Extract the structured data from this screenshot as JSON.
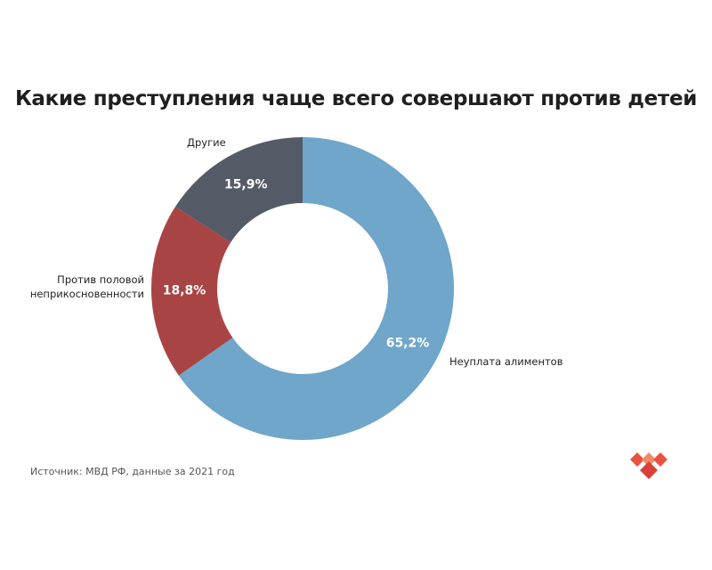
{
  "chart_data": {
    "type": "donut",
    "title": "Какие преступления чаще всего совершают против детей",
    "categories": [
      "Неуплата алиментов",
      "Против половой неприкосновенности",
      "Другие"
    ],
    "values": [
      65.2,
      18.8,
      15.9
    ],
    "value_labels": [
      "65,2%",
      "18,8%",
      "15,9%"
    ],
    "colors": [
      "#6fa6ca",
      "#a94444",
      "#555b66"
    ],
    "source": "Источник: МВД РФ, данные за 2021 год"
  }
}
